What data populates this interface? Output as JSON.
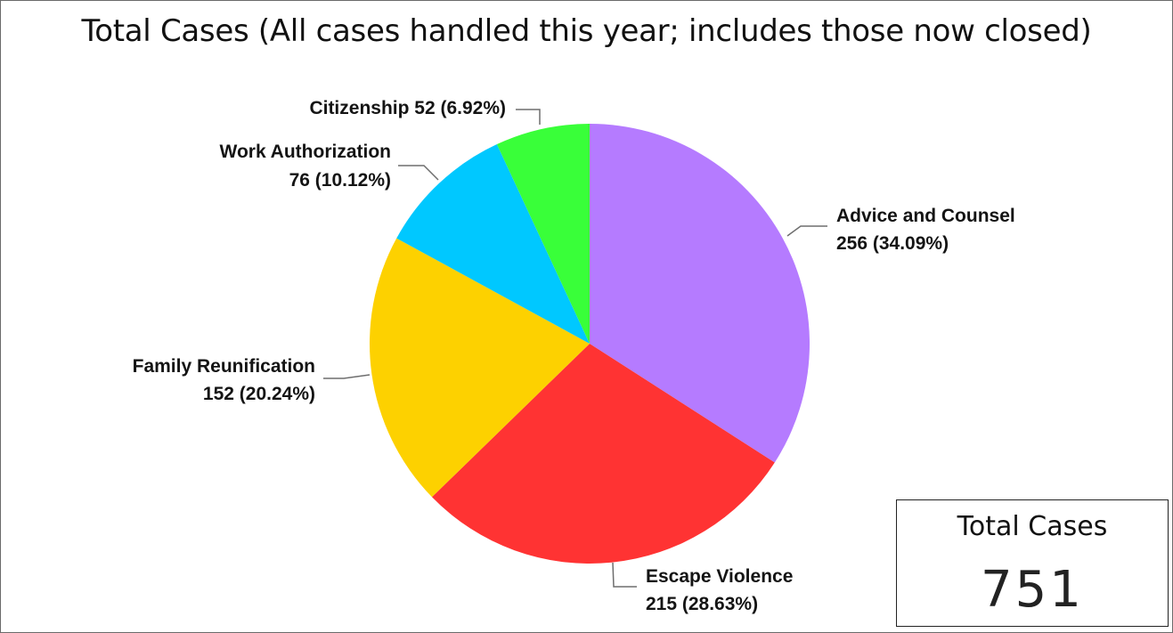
{
  "chart_data": {
    "type": "pie",
    "title": "Total Cases (All cases handled this year; includes those now closed)",
    "slices": [
      {
        "name": "Advice and Counsel",
        "value": 256,
        "percent": "34.09%",
        "color": "#b57bff"
      },
      {
        "name": "Escape Violence",
        "value": 215,
        "percent": "28.63%",
        "color": "#ff3333"
      },
      {
        "name": "Family Reunification",
        "value": 152,
        "percent": "20.24%",
        "color": "#fdd100"
      },
      {
        "name": "Work Authorization",
        "value": 76,
        "percent": "10.12%",
        "color": "#00c8ff"
      },
      {
        "name": "Citizenship",
        "value": 52,
        "percent": "6.92%",
        "color": "#39ff39"
      }
    ]
  },
  "total_card": {
    "label": "Total Cases",
    "value": "751"
  }
}
